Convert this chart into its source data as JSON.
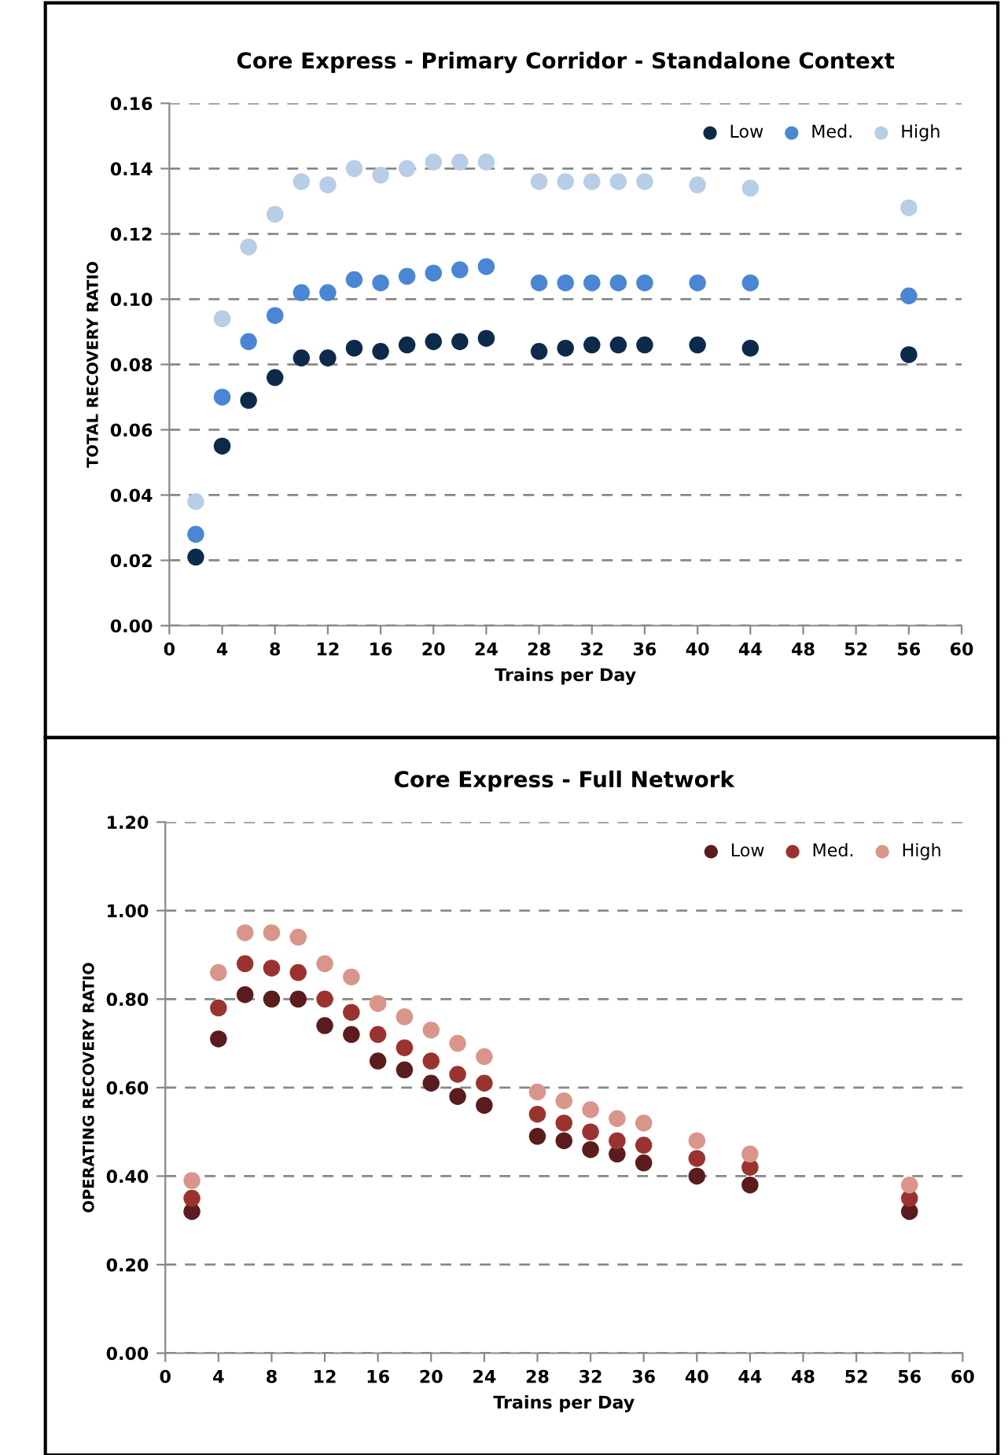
{
  "chart_data": [
    {
      "type": "scatter",
      "title": "Core Express - Primary Corridor - Standalone Context",
      "xlabel": "Trains per Day",
      "ylabel": "TOTAL RECOVERY RATIO",
      "x": [
        2,
        4,
        6,
        8,
        10,
        12,
        14,
        16,
        18,
        20,
        22,
        24,
        28,
        30,
        32,
        34,
        36,
        40,
        44,
        56
      ],
      "series": [
        {
          "name": "Low",
          "color": "#0d2a4a",
          "values": [
            0.021,
            0.055,
            0.069,
            0.076,
            0.082,
            0.082,
            0.085,
            0.084,
            0.086,
            0.087,
            0.087,
            0.088,
            0.084,
            0.085,
            0.086,
            0.086,
            0.086,
            0.086,
            0.085,
            0.083
          ]
        },
        {
          "name": "Med.",
          "color": "#4a86d4",
          "values": [
            0.028,
            0.07,
            0.087,
            0.095,
            0.102,
            0.102,
            0.106,
            0.105,
            0.107,
            0.108,
            0.109,
            0.11,
            0.105,
            0.105,
            0.105,
            0.105,
            0.105,
            0.105,
            0.105,
            0.101
          ]
        },
        {
          "name": "High",
          "color": "#b8cde6",
          "values": [
            0.038,
            0.094,
            0.116,
            0.126,
            0.136,
            0.135,
            0.14,
            0.138,
            0.14,
            0.142,
            0.142,
            0.142,
            0.136,
            0.136,
            0.136,
            0.136,
            0.136,
            0.135,
            0.134,
            0.128
          ]
        }
      ],
      "xlim": [
        0,
        60
      ],
      "xticks": [
        0,
        4,
        8,
        12,
        16,
        20,
        24,
        28,
        32,
        36,
        40,
        44,
        48,
        52,
        56,
        60
      ],
      "ylim": [
        0,
        0.16
      ],
      "yticks": [
        {
          "value": 0,
          "label": "0.00"
        },
        {
          "value": 0.02,
          "label": "0.02"
        },
        {
          "value": 0.04,
          "label": "0.04"
        },
        {
          "value": 0.06,
          "label": "0.06"
        },
        {
          "value": 0.08,
          "label": "0.08"
        },
        {
          "value": 0.1,
          "label": "0.10"
        },
        {
          "value": 0.12,
          "label": "0.12"
        },
        {
          "value": 0.14,
          "label": "0.14"
        },
        {
          "value": 0.16,
          "label": "0.16"
        }
      ],
      "grid": "y",
      "legend": "top right",
      "marker": "circle"
    },
    {
      "type": "scatter",
      "title": "Core Express - Full Network",
      "xlabel": "Trains per Day",
      "ylabel": "OPERATING RECOVERY RATIO",
      "x": [
        2,
        4,
        6,
        8,
        10,
        12,
        14,
        16,
        18,
        20,
        22,
        24,
        28,
        30,
        32,
        34,
        36,
        40,
        44,
        56
      ],
      "series": [
        {
          "name": "Low",
          "color": "#5a1c1c",
          "values": [
            0.32,
            0.71,
            0.81,
            0.8,
            0.8,
            0.74,
            0.72,
            0.66,
            0.64,
            0.61,
            0.58,
            0.56,
            0.49,
            0.48,
            0.46,
            0.45,
            0.43,
            0.4,
            0.38,
            0.32
          ]
        },
        {
          "name": "Med.",
          "color": "#9a3330",
          "values": [
            0.35,
            0.78,
            0.88,
            0.87,
            0.86,
            0.8,
            0.77,
            0.72,
            0.69,
            0.66,
            0.63,
            0.61,
            0.54,
            0.52,
            0.5,
            0.48,
            0.47,
            0.44,
            0.42,
            0.35
          ]
        },
        {
          "name": "High",
          "color": "#d9958a",
          "values": [
            0.39,
            0.86,
            0.95,
            0.95,
            0.94,
            0.88,
            0.85,
            0.79,
            0.76,
            0.73,
            0.7,
            0.67,
            0.59,
            0.57,
            0.55,
            0.53,
            0.52,
            0.48,
            0.45,
            0.38
          ]
        }
      ],
      "xlim": [
        0,
        60
      ],
      "xticks": [
        0,
        4,
        8,
        12,
        16,
        20,
        24,
        28,
        32,
        36,
        40,
        44,
        48,
        52,
        56,
        60
      ],
      "ylim": [
        0,
        1.2
      ],
      "yticks": [
        {
          "value": 0,
          "label": "0.00"
        },
        {
          "value": 0.2,
          "label": "0.20"
        },
        {
          "value": 0.4,
          "label": "0.40"
        },
        {
          "value": 0.6,
          "label": "0.60"
        },
        {
          "value": 0.8,
          "label": "0.80"
        },
        {
          "value": 1.0,
          "label": "1.00"
        },
        {
          "value": 1.2,
          "label": "1.20"
        }
      ],
      "grid": "y",
      "legend": "top right",
      "marker": "circle"
    }
  ]
}
